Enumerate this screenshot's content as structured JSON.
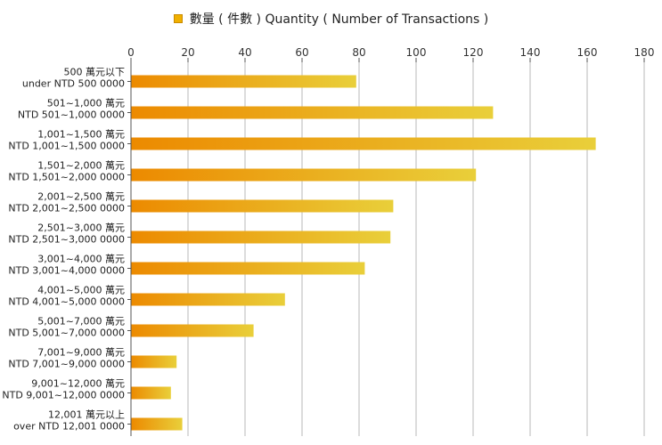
{
  "legend": {
    "label": "數量 ( 件數 ) Quantity ( Number of Transactions )",
    "swatch_color": "#f0b000"
  },
  "colors": {
    "bar_dark": "#ec8a00",
    "bar_light": "#e9cf3a",
    "grid": "#b8b8b8",
    "axis": "#555555"
  },
  "chart_data": {
    "type": "bar",
    "orientation": "horizontal",
    "title": "",
    "xlabel": "",
    "ylabel": "",
    "xlim": [
      0,
      180
    ],
    "x_ticks": [
      0,
      20,
      40,
      60,
      80,
      100,
      120,
      140,
      160,
      180
    ],
    "x_tick_position": "top",
    "grid": true,
    "legend_position": "top-center",
    "categories": [
      [
        "500 萬元以下",
        "under NTD 500 0000"
      ],
      [
        "501~1,000 萬元",
        "NTD 501~1,000 0000"
      ],
      [
        "1,001~1,500 萬元",
        "NTD 1,001~1,500 0000"
      ],
      [
        "1,501~2,000 萬元",
        "NTD 1,501~2,000 0000"
      ],
      [
        "2,001~2,500 萬元",
        "NTD 2,001~2,500 0000"
      ],
      [
        "2,501~3,000 萬元",
        "NTD 2,501~3,000 0000"
      ],
      [
        "3,001~4,000 萬元",
        "NTD 3,001~4,000 0000"
      ],
      [
        "4,001~5,000 萬元",
        "NTD 4,001~5,000 0000"
      ],
      [
        "5,001~7,000 萬元",
        "NTD 5,001~7,000 0000"
      ],
      [
        "7,001~9,000 萬元",
        "NTD 7,001~9,000 0000"
      ],
      [
        "9,001~12,000 萬元",
        "NTD 9,001~12,000 0000"
      ],
      [
        "12,001 萬元以上",
        "over NTD 12,001 0000"
      ]
    ],
    "series": [
      {
        "name": "數量 ( 件數 ) Quantity ( Number of Transactions )",
        "values": [
          79,
          127,
          163,
          121,
          92,
          91,
          82,
          54,
          43,
          16,
          14,
          18
        ]
      }
    ]
  }
}
